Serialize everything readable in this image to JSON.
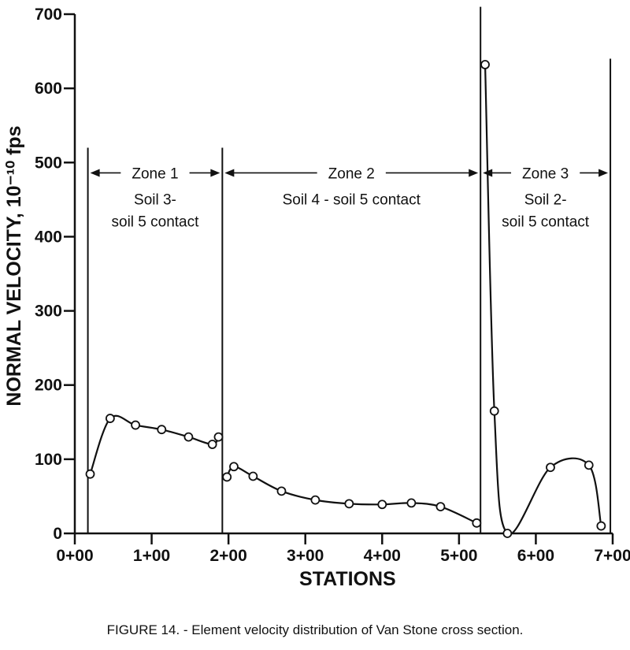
{
  "chart_data": {
    "type": "line",
    "xlabel": "STATIONS",
    "ylabel": "NORMAL VELOCITY, 10⁻¹⁰ fps",
    "xlim": [
      0,
      7.0
    ],
    "ylim": [
      0,
      700
    ],
    "x_ticks": [
      {
        "value": 0,
        "label": "0+00"
      },
      {
        "value": 1,
        "label": "1+00"
      },
      {
        "value": 2,
        "label": "2+00"
      },
      {
        "value": 3,
        "label": "3+00"
      },
      {
        "value": 4,
        "label": "4+00"
      },
      {
        "value": 5,
        "label": "5+00"
      },
      {
        "value": 6,
        "label": "6+00"
      },
      {
        "value": 7,
        "label": "7+00"
      }
    ],
    "y_ticks": [
      0,
      100,
      200,
      300,
      400,
      500,
      600,
      700
    ],
    "zone_boundaries": [
      {
        "x": 0.17,
        "ymax": 520
      },
      {
        "x": 1.92,
        "ymax": 520
      },
      {
        "x": 5.28,
        "ymax": 710
      },
      {
        "x": 6.97,
        "ymax": 640
      }
    ],
    "zones": [
      {
        "label": "Zone 1",
        "desc": [
          "Soil 3-",
          "soil 5 contact"
        ],
        "x_from": 0.17,
        "x_to": 1.92
      },
      {
        "label": "Zone 2",
        "desc": [
          "Soil 4 - soil 5 contact"
        ],
        "x_from": 1.92,
        "x_to": 5.28
      },
      {
        "label": "Zone 3",
        "desc": [
          "Soil 2-",
          "soil 5 contact"
        ],
        "x_from": 5.28,
        "x_to": 6.97
      }
    ],
    "series": [
      {
        "points": [
          [
            0.2,
            80
          ],
          [
            0.46,
            155
          ],
          [
            0.79,
            146
          ],
          [
            1.13,
            140
          ],
          [
            1.48,
            130
          ],
          [
            1.79,
            120
          ],
          [
            1.87,
            130
          ]
        ]
      },
      {
        "points": [
          [
            1.98,
            76
          ],
          [
            2.07,
            90
          ],
          [
            2.32,
            77
          ],
          [
            2.69,
            57
          ],
          [
            3.13,
            45
          ],
          [
            3.57,
            40
          ],
          [
            4.0,
            39
          ],
          [
            4.38,
            41
          ],
          [
            4.76,
            36
          ],
          [
            5.23,
            14
          ]
        ]
      },
      {
        "points": [
          [
            5.34,
            632
          ],
          [
            5.46,
            165
          ],
          [
            5.63,
            0
          ],
          [
            6.19,
            89
          ],
          [
            6.69,
            92
          ],
          [
            6.85,
            10
          ]
        ]
      }
    ]
  },
  "caption": "FIGURE 14. - Element velocity distribution of Van Stone cross section."
}
